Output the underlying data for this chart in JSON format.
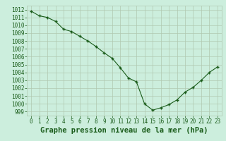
{
  "hours": [
    0,
    1,
    2,
    3,
    4,
    5,
    6,
    7,
    8,
    9,
    10,
    11,
    12,
    13,
    14,
    15,
    16,
    17,
    18,
    19,
    20,
    21,
    22,
    23
  ],
  "pressure": [
    1011.8,
    1011.2,
    1011.0,
    1010.5,
    1009.5,
    1009.2,
    1008.6,
    1008.0,
    1007.3,
    1006.5,
    1005.8,
    1004.6,
    1003.3,
    1002.8,
    1000.0,
    999.2,
    999.5,
    999.9,
    1000.5,
    1001.5,
    1002.1,
    1003.0,
    1004.0,
    1004.7
  ],
  "line_color": "#1a5c1a",
  "marker": "+",
  "bg_color": "#cceedd",
  "grid_color": "#b0c8b0",
  "xlabel": "Graphe pression niveau de la mer (hPa)",
  "ylim": [
    998.5,
    1012.5
  ],
  "xlim": [
    -0.5,
    23.5
  ],
  "yticks": [
    999,
    1000,
    1001,
    1002,
    1003,
    1004,
    1005,
    1006,
    1007,
    1008,
    1009,
    1010,
    1011,
    1012
  ],
  "xticks": [
    0,
    1,
    2,
    3,
    4,
    5,
    6,
    7,
    8,
    9,
    10,
    11,
    12,
    13,
    14,
    15,
    16,
    17,
    18,
    19,
    20,
    21,
    22,
    23
  ],
  "tick_label_color": "#1a5c1a",
  "xlabel_color": "#1a5c1a",
  "tick_fontsize": 5.5,
  "xlabel_fontsize": 7.5,
  "linewidth": 0.8,
  "markersize": 3.5,
  "markeredgewidth": 1.0
}
